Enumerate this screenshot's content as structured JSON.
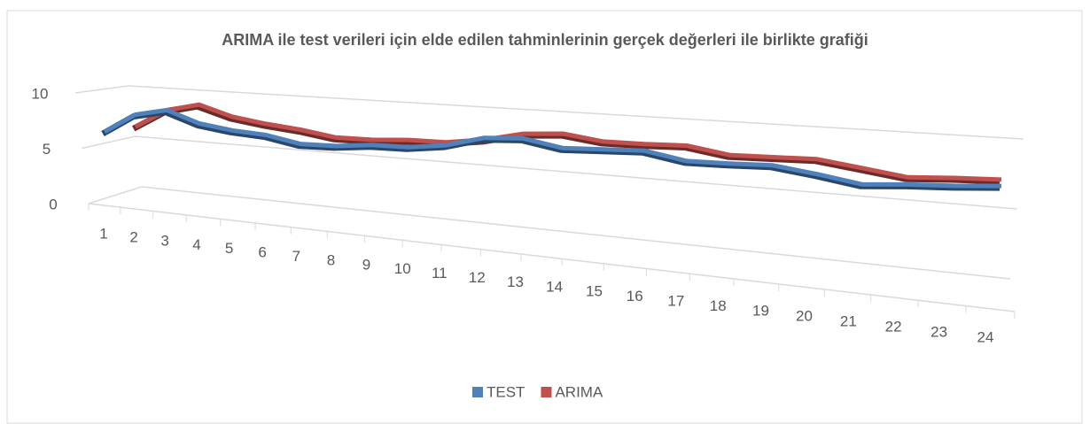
{
  "chart_data": {
    "type": "line3d",
    "title": "ARIMA ile test verileri için elde edilen tahminlerinin gerçek değerleri ile birlikte grafiği",
    "categories": [
      "1",
      "2",
      "3",
      "4",
      "5",
      "6",
      "7",
      "8",
      "9",
      "10",
      "11",
      "12",
      "13",
      "14",
      "15",
      "16",
      "17",
      "18",
      "19",
      "20",
      "21",
      "22",
      "23",
      "24"
    ],
    "series": [
      {
        "name": "TEST",
        "color": "#4f81bd",
        "values": [
          6.5,
          8,
          8.5,
          7.5,
          7,
          6.7,
          6,
          5.9,
          6.1,
          6,
          6.3,
          7.2,
          7.3,
          6.4,
          6.4,
          6.4,
          5.3,
          5.1,
          5,
          3.9,
          2.5,
          2.5,
          2.3,
          2.3
        ]
      },
      {
        "name": "ARIMA",
        "color": "#c0504d",
        "values": [
          null,
          7,
          8.5,
          9.1,
          8.2,
          7.7,
          7.3,
          6.7,
          6.6,
          6.7,
          6.6,
          7,
          7.8,
          8,
          7.3,
          7.2,
          7.2,
          6.2,
          6.1,
          6,
          4.9,
          3.6,
          3.6,
          3.4
        ]
      }
    ],
    "ylim": [
      0,
      10
    ],
    "yticks": [
      0,
      5,
      10
    ],
    "grid": true,
    "legend": "bottom"
  }
}
